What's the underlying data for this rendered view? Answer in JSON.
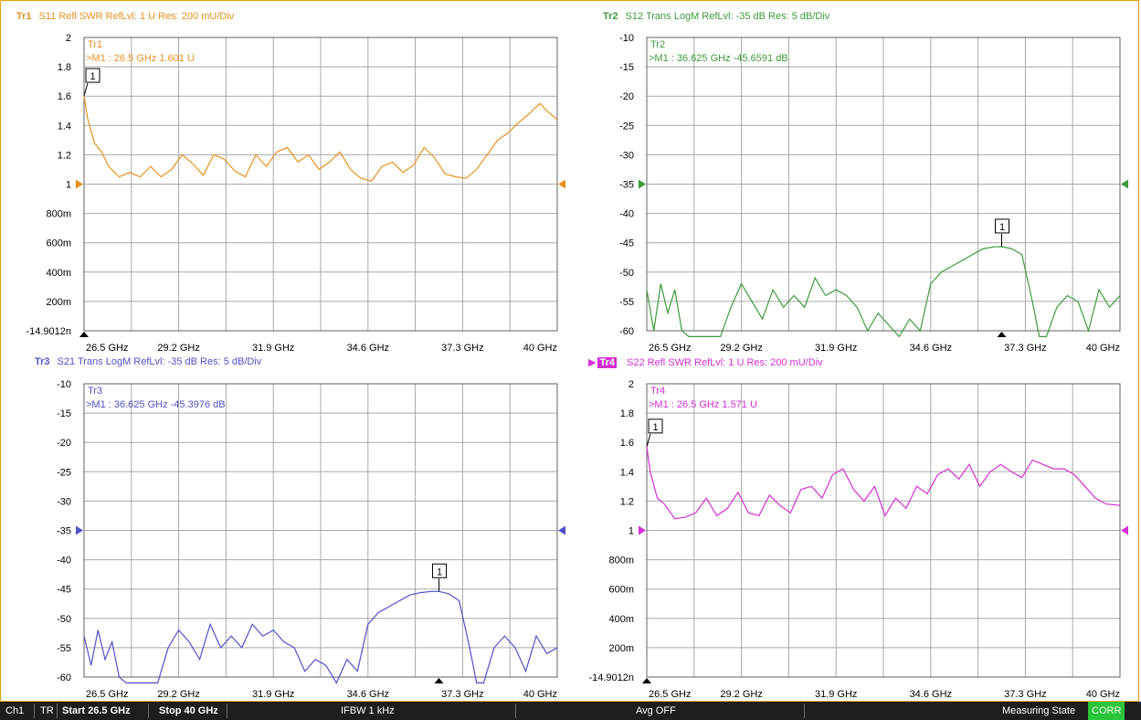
{
  "colors": {
    "tr1": "#e8901f",
    "tr2": "#3c9a3c",
    "tr3": "#5050c8",
    "tr4": "#d42ed4",
    "grid": "#a8a8a8",
    "frame": "#e8a200"
  },
  "chart_data": [
    {
      "type": "line",
      "id": "tr1",
      "header": {
        "trace": "Tr1",
        "text": "S11 Refl SWR RefLvl: 1  U Res: 200 mU/Div"
      },
      "title": "Tr1",
      "marker_readout": ">M1  :  26.5 GHz  1.601  U",
      "marker_label": "1",
      "marker": {
        "x": 26.5,
        "y": 1.601
      },
      "ylim": [
        -1.49012e-08,
        2
      ],
      "yticks": [
        2,
        1.8,
        1.6,
        1.4,
        1.2,
        1,
        0.8,
        0.6,
        0.4,
        0.2,
        0
      ],
      "ytick_labels": [
        "2",
        "1.8",
        "1.6",
        "1.4",
        "1.2",
        "1",
        "800m",
        "600m",
        "400m",
        "200m",
        "-14.9012n"
      ],
      "xlim": [
        26.5,
        40
      ],
      "xtick_labels": [
        "26.5 GHz",
        "29.2 GHz",
        "31.9 GHz",
        "34.6 GHz",
        "37.3 GHz",
        "40 GHz"
      ],
      "ref_level": 1,
      "x": [
        26.5,
        26.6,
        26.8,
        27.0,
        27.2,
        27.5,
        27.8,
        28.1,
        28.4,
        28.7,
        29.0,
        29.3,
        29.6,
        29.9,
        30.2,
        30.5,
        30.8,
        31.1,
        31.4,
        31.7,
        32.0,
        32.3,
        32.6,
        32.9,
        33.2,
        33.5,
        33.8,
        34.1,
        34.4,
        34.7,
        35.0,
        35.3,
        35.6,
        35.9,
        36.2,
        36.5,
        36.8,
        37.1,
        37.4,
        37.7,
        38.0,
        38.3,
        38.6,
        38.9,
        39.2,
        39.5,
        39.7,
        40.0
      ],
      "values": [
        1.601,
        1.45,
        1.28,
        1.22,
        1.12,
        1.05,
        1.08,
        1.05,
        1.12,
        1.05,
        1.1,
        1.2,
        1.14,
        1.06,
        1.2,
        1.17,
        1.09,
        1.05,
        1.2,
        1.12,
        1.22,
        1.25,
        1.15,
        1.2,
        1.1,
        1.15,
        1.22,
        1.1,
        1.04,
        1.02,
        1.12,
        1.15,
        1.08,
        1.13,
        1.25,
        1.18,
        1.07,
        1.05,
        1.04,
        1.1,
        1.2,
        1.3,
        1.35,
        1.42,
        1.48,
        1.55,
        1.5,
        1.44
      ]
    },
    {
      "type": "line",
      "id": "tr2",
      "header": {
        "trace": "Tr2",
        "text": "S12 Trans LogM RefLvl: -35  dB Res: 5  dB/Div"
      },
      "title": "Tr2",
      "marker_readout": ">M1  :  36.625 GHz  -45.6591  dB",
      "marker_label": "1",
      "marker": {
        "x": 36.625,
        "y": -45.6591
      },
      "ylim": [
        -60,
        -10
      ],
      "yticks": [
        -10,
        -15,
        -20,
        -25,
        -30,
        -35,
        -40,
        -45,
        -50,
        -55,
        -60
      ],
      "ytick_labels": [
        "-10",
        "-15",
        "-20",
        "-25",
        "-30",
        "-35",
        "-40",
        "-45",
        "-50",
        "-55",
        "-60"
      ],
      "xlim": [
        26.5,
        40
      ],
      "xtick_labels": [
        "26.5 GHz",
        "29.2 GHz",
        "31.9 GHz",
        "34.6 GHz",
        "37.3 GHz",
        "40 GHz"
      ],
      "ref_level": -35,
      "x": [
        26.5,
        26.7,
        26.9,
        27.1,
        27.3,
        27.5,
        27.7,
        28.0,
        28.3,
        28.6,
        28.9,
        29.2,
        29.5,
        29.8,
        30.1,
        30.4,
        30.7,
        31.0,
        31.3,
        31.6,
        31.9,
        32.2,
        32.5,
        32.8,
        33.1,
        33.4,
        33.7,
        34.0,
        34.3,
        34.6,
        34.9,
        35.2,
        35.5,
        35.8,
        36.1,
        36.4,
        36.625,
        36.9,
        37.2,
        37.5,
        37.7,
        37.9,
        38.2,
        38.5,
        38.8,
        39.1,
        39.4,
        39.7,
        40.0
      ],
      "values": [
        -53,
        -60,
        -52,
        -57,
        -53,
        -60,
        -61,
        -63,
        -65,
        -62,
        -56,
        -52,
        -55,
        -58,
        -53,
        -56,
        -54,
        -56,
        -51,
        -54,
        -53,
        -54,
        -56,
        -60,
        -57,
        -59,
        -62,
        -58,
        -60,
        -52,
        -50,
        -49,
        -48,
        -47,
        -46,
        -45.7,
        -45.66,
        -46,
        -47,
        -55,
        -65,
        -62,
        -56,
        -54,
        -55,
        -60,
        -53,
        -56,
        -54
      ]
    },
    {
      "type": "line",
      "id": "tr3",
      "header": {
        "trace": "Tr3",
        "text": "S21 Trans LogM RefLvl: -35  dB Res: 5  dB/Div"
      },
      "title": "Tr3",
      "marker_readout": ">M1  :  36.625 GHz  -45.3976  dB",
      "marker_label": "1",
      "marker": {
        "x": 36.625,
        "y": -45.3976
      },
      "ylim": [
        -60,
        -10
      ],
      "yticks": [
        -10,
        -15,
        -20,
        -25,
        -30,
        -35,
        -40,
        -45,
        -50,
        -55,
        -60
      ],
      "ytick_labels": [
        "-10",
        "-15",
        "-20",
        "-25",
        "-30",
        "-35",
        "-40",
        "-45",
        "-50",
        "-55",
        "-60"
      ],
      "xlim": [
        26.5,
        40
      ],
      "xtick_labels": [
        "26.5 GHz",
        "29.2 GHz",
        "31.9 GHz",
        "34.6 GHz",
        "37.3 GHz",
        "40 GHz"
      ],
      "ref_level": -35,
      "x": [
        26.5,
        26.7,
        26.9,
        27.1,
        27.3,
        27.5,
        27.7,
        28.0,
        28.3,
        28.6,
        28.9,
        29.2,
        29.5,
        29.8,
        30.1,
        30.4,
        30.7,
        31.0,
        31.3,
        31.6,
        31.9,
        32.2,
        32.5,
        32.8,
        33.1,
        33.4,
        33.7,
        34.0,
        34.3,
        34.6,
        34.9,
        35.2,
        35.5,
        35.8,
        36.1,
        36.4,
        36.625,
        36.9,
        37.2,
        37.5,
        37.7,
        37.9,
        38.2,
        38.5,
        38.8,
        39.1,
        39.4,
        39.7,
        40.0
      ],
      "values": [
        -53,
        -58,
        -52,
        -57,
        -54,
        -60,
        -62,
        -63,
        -64,
        -61,
        -55,
        -52,
        -54,
        -57,
        -51,
        -55,
        -53,
        -55,
        -51,
        -53,
        -52,
        -54,
        -55,
        -59,
        -57,
        -58,
        -61,
        -57,
        -59,
        -51,
        -49,
        -48,
        -47,
        -46,
        -45.6,
        -45.4,
        -45.4,
        -45.8,
        -47,
        -55,
        -66,
        -62,
        -55,
        -53,
        -55,
        -59,
        -53,
        -56,
        -55
      ]
    },
    {
      "type": "line",
      "id": "tr4",
      "header": {
        "trace": "Tr4",
        "text": "S22 Refl SWR RefLvl: 1  U Res: 200 mU/Div"
      },
      "title": "Tr4",
      "marker_readout": ">M1  :  26.5 GHz  1.571  U",
      "marker_label": "1",
      "marker": {
        "x": 26.5,
        "y": 1.571
      },
      "ylim": [
        -1.49012e-08,
        2
      ],
      "yticks": [
        2,
        1.8,
        1.6,
        1.4,
        1.2,
        1,
        0.8,
        0.6,
        0.4,
        0.2,
        0
      ],
      "ytick_labels": [
        "2",
        "1.8",
        "1.6",
        "1.4",
        "1.2",
        "1",
        "800m",
        "600m",
        "400m",
        "200m",
        "-14.9012n"
      ],
      "xlim": [
        26.5,
        40
      ],
      "xtick_labels": [
        "26.5 GHz",
        "29.2 GHz",
        "31.9 GHz",
        "34.6 GHz",
        "37.3 GHz",
        "40 GHz"
      ],
      "ref_level": 1,
      "x": [
        26.5,
        26.6,
        26.8,
        27.0,
        27.3,
        27.6,
        27.9,
        28.2,
        28.5,
        28.8,
        29.1,
        29.4,
        29.7,
        30.0,
        30.3,
        30.6,
        30.9,
        31.2,
        31.5,
        31.8,
        32.1,
        32.4,
        32.7,
        33.0,
        33.3,
        33.6,
        33.9,
        34.2,
        34.5,
        34.8,
        35.1,
        35.4,
        35.7,
        36.0,
        36.3,
        36.6,
        36.9,
        37.2,
        37.5,
        37.8,
        38.1,
        38.4,
        38.7,
        39.0,
        39.3,
        39.6,
        40.0
      ],
      "values": [
        1.571,
        1.4,
        1.22,
        1.18,
        1.08,
        1.09,
        1.12,
        1.22,
        1.1,
        1.15,
        1.26,
        1.12,
        1.1,
        1.24,
        1.17,
        1.12,
        1.28,
        1.3,
        1.22,
        1.38,
        1.42,
        1.28,
        1.2,
        1.3,
        1.1,
        1.22,
        1.15,
        1.3,
        1.25,
        1.38,
        1.42,
        1.35,
        1.45,
        1.3,
        1.4,
        1.45,
        1.4,
        1.36,
        1.48,
        1.45,
        1.42,
        1.42,
        1.38,
        1.3,
        1.22,
        1.18,
        1.17
      ]
    }
  ],
  "statusbar": {
    "ch": "Ch1",
    "tr": "TR",
    "start": "Start 26.5 GHz",
    "stop": "Stop 40 GHz",
    "ifbw": "IFBW 1 kHz",
    "avg": "Avg OFF",
    "state": "Measuring State",
    "corr": "CORR"
  }
}
